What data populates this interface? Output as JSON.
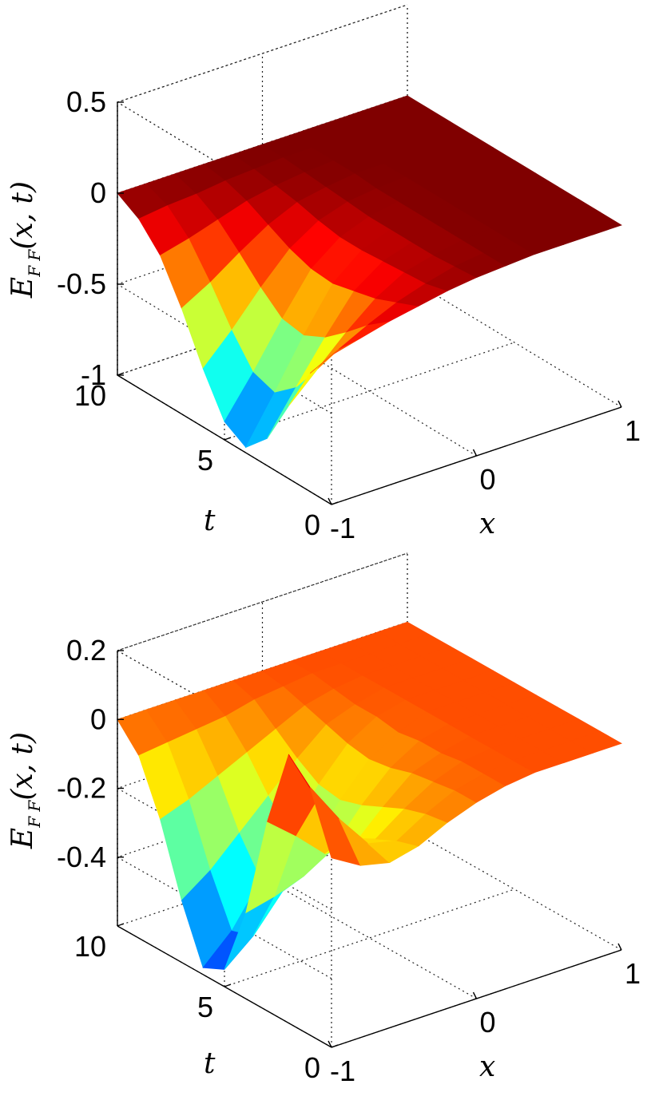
{
  "chart_data": [
    {
      "type": "surface",
      "title": "",
      "colormap": "jet",
      "grid": true,
      "xlabel": "x",
      "ylabel": "t",
      "zlabel": "E_FF(x,t)",
      "xlim": [
        -1,
        1
      ],
      "ylim": [
        0,
        10
      ],
      "zlim": [
        -1,
        0.5
      ],
      "x_ticks": [
        "-1",
        "0",
        "1"
      ],
      "y_ticks": [
        "0",
        "5",
        "10"
      ],
      "z_ticks": [
        "-1",
        "-0.5",
        "0",
        "0.5"
      ],
      "x": [
        -1,
        -0.8,
        -0.6,
        -0.4,
        -0.2,
        0,
        0.2,
        0.4,
        0.6,
        0.8,
        1
      ],
      "t": [
        0,
        1,
        2,
        3,
        4,
        5,
        6,
        7,
        8,
        9,
        10
      ],
      "z_rows_by_t": [
        [
          -0.18,
          -0.14,
          -0.1,
          -0.07,
          -0.04,
          -0.02,
          -0.01,
          0.0,
          0.0,
          0.0,
          0.0
        ],
        [
          -0.35,
          -0.27,
          -0.19,
          -0.12,
          -0.07,
          -0.03,
          -0.01,
          0.0,
          0.0,
          0.0,
          0.0
        ],
        [
          -0.6,
          -0.45,
          -0.3,
          -0.17,
          -0.08,
          -0.04,
          -0.01,
          0.0,
          0.0,
          0.0,
          0.0
        ],
        [
          -0.85,
          -0.62,
          -0.4,
          -0.2,
          -0.09,
          -0.04,
          -0.01,
          0.0,
          0.0,
          0.0,
          0.0
        ],
        [
          -0.97,
          -0.72,
          -0.46,
          -0.23,
          -0.1,
          -0.04,
          -0.01,
          0.0,
          0.0,
          0.0,
          0.0
        ],
        [
          -0.9,
          -0.68,
          -0.44,
          -0.22,
          -0.1,
          -0.04,
          -0.01,
          0.0,
          0.0,
          0.0,
          0.0
        ],
        [
          -0.68,
          -0.52,
          -0.34,
          -0.18,
          -0.08,
          -0.03,
          -0.01,
          0.0,
          0.0,
          0.0,
          0.0
        ],
        [
          -0.42,
          -0.33,
          -0.22,
          -0.12,
          -0.05,
          -0.02,
          0.0,
          0.0,
          0.0,
          0.0,
          0.0
        ],
        [
          -0.2,
          -0.16,
          -0.11,
          -0.06,
          -0.03,
          -0.01,
          0.0,
          0.0,
          0.0,
          0.0,
          0.0
        ],
        [
          -0.07,
          -0.05,
          -0.04,
          -0.02,
          -0.01,
          0.0,
          0.0,
          0.0,
          0.0,
          0.0,
          0.0
        ],
        [
          0.0,
          0.0,
          0.0,
          0.0,
          0.0,
          0.0,
          0.0,
          0.0,
          0.0,
          0.0,
          0.0
        ]
      ]
    },
    {
      "type": "surface",
      "title": "",
      "colormap": "jet",
      "grid": true,
      "xlabel": "x",
      "ylabel": "t",
      "zlabel": "E_FF(x,t)",
      "xlim": [
        -1,
        1
      ],
      "ylim": [
        0,
        10
      ],
      "zlim": [
        -0.6,
        0.2
      ],
      "x_ticks": [
        "-1",
        "0",
        "1"
      ],
      "y_ticks": [
        "0",
        "5",
        "10"
      ],
      "z_ticks": [
        "-0.4",
        "-0.2",
        "0",
        "0.2"
      ],
      "x": [
        -1,
        -0.8,
        -0.6,
        -0.4,
        -0.2,
        0,
        0.2,
        0.4,
        0.6,
        0.8,
        1
      ],
      "t": [
        0,
        1,
        2,
        3,
        4,
        5,
        6,
        7,
        8,
        9,
        10
      ],
      "z_rows_by_t": [
        [
          -0.05,
          -0.1,
          -0.12,
          -0.1,
          -0.06,
          -0.03,
          -0.01,
          0.0,
          0.0,
          0.0,
          0.0
        ],
        [
          0.12,
          0.0,
          -0.1,
          -0.12,
          -0.07,
          -0.03,
          -0.01,
          0.0,
          0.0,
          0.0,
          0.0
        ],
        [
          0.18,
          0.02,
          -0.12,
          -0.15,
          -0.09,
          -0.04,
          -0.01,
          0.0,
          0.0,
          0.0,
          0.0
        ],
        [
          -0.05,
          -0.12,
          -0.2,
          -0.2,
          -0.12,
          -0.05,
          -0.02,
          0.0,
          0.0,
          0.0,
          0.0
        ],
        [
          -0.35,
          -0.33,
          -0.3,
          -0.25,
          -0.15,
          -0.07,
          -0.02,
          0.0,
          0.0,
          0.0,
          0.0
        ],
        [
          -0.55,
          -0.48,
          -0.38,
          -0.28,
          -0.17,
          -0.08,
          -0.03,
          0.0,
          0.0,
          0.0,
          0.0
        ],
        [
          -0.58,
          -0.5,
          -0.38,
          -0.27,
          -0.16,
          -0.07,
          -0.02,
          0.0,
          0.0,
          0.0,
          0.0
        ],
        [
          -0.42,
          -0.36,
          -0.28,
          -0.2,
          -0.12,
          -0.05,
          -0.02,
          0.0,
          0.0,
          0.0,
          0.0
        ],
        [
          -0.22,
          -0.19,
          -0.15,
          -0.11,
          -0.07,
          -0.03,
          -0.01,
          0.0,
          0.0,
          0.0,
          0.0
        ],
        [
          -0.07,
          -0.06,
          -0.05,
          -0.04,
          -0.02,
          -0.01,
          0.0,
          0.0,
          0.0,
          0.0,
          0.0
        ],
        [
          0.0,
          0.0,
          0.0,
          0.0,
          0.0,
          0.0,
          0.0,
          0.0,
          0.0,
          0.0,
          0.0
        ]
      ]
    }
  ]
}
